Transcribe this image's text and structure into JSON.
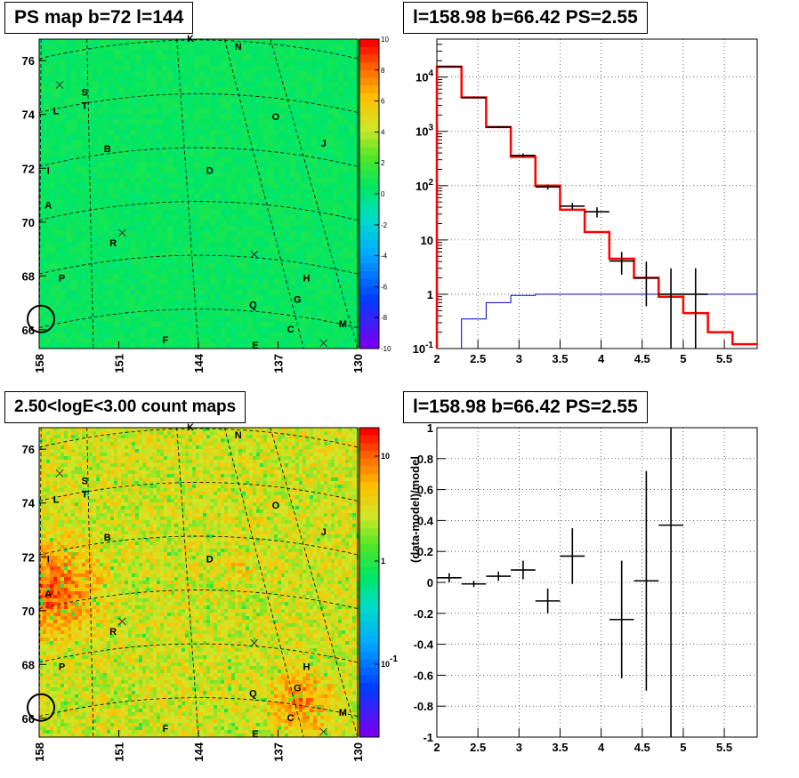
{
  "panels": {
    "top_left_title": "PS map b=72 l=144",
    "top_right_title": "l=158.98 b=66.42 PS=2.55",
    "bottom_left_title": "2.50<logE<3.00 count maps",
    "bottom_right_title": "l=158.98 b=66.42 PS=2.55"
  },
  "colors": {
    "histogram_model": "#ff0000",
    "baseline_line": "#0000cc",
    "data_points": "#000000",
    "map_background_top": "#22dd55",
    "map_background_bottom": "#e7d65a"
  },
  "chart_data": [
    {
      "type": "heatmap",
      "title": "PS map b=72 l=144",
      "xlabel": "",
      "ylabel": "",
      "x_ticks": [
        "158",
        "151",
        "144",
        "137",
        "130"
      ],
      "y_ticks": [
        "66",
        "68",
        "70",
        "72",
        "74",
        "76"
      ],
      "colorbar": {
        "ticks": [
          "10",
          "8",
          "6",
          "4",
          "2",
          "0",
          "-2",
          "-4",
          "-6",
          "-8",
          "-10"
        ],
        "range": [
          -10,
          10
        ]
      },
      "source_labels": [
        {
          "label": "K",
          "l": 144.7,
          "b": 76.7
        },
        {
          "label": "N",
          "l": 140.5,
          "b": 76.4
        },
        {
          "label": "S",
          "l": 154.0,
          "b": 74.7
        },
        {
          "label": "T",
          "l": 154.0,
          "b": 74.2
        },
        {
          "label": "L",
          "l": 156.5,
          "b": 74.0
        },
        {
          "label": "O",
          "l": 137.2,
          "b": 73.8
        },
        {
          "label": "J",
          "l": 133.0,
          "b": 72.8
        },
        {
          "label": "B",
          "l": 152.0,
          "b": 72.6
        },
        {
          "label": "D",
          "l": 143.0,
          "b": 71.8
        },
        {
          "label": "I",
          "l": 157.2,
          "b": 71.8
        },
        {
          "label": "A",
          "l": 157.2,
          "b": 70.5
        },
        {
          "label": "R",
          "l": 151.5,
          "b": 69.1
        },
        {
          "label": "H",
          "l": 134.5,
          "b": 67.8
        },
        {
          "label": "P",
          "l": 156.0,
          "b": 67.8
        },
        {
          "label": "G",
          "l": 135.3,
          "b": 67.0
        },
        {
          "label": "Q",
          "l": 139.2,
          "b": 66.8
        },
        {
          "label": "C",
          "l": 135.9,
          "b": 65.9
        },
        {
          "label": "M",
          "l": 131.3,
          "b": 66.1
        },
        {
          "label": "F",
          "l": 146.9,
          "b": 65.5
        },
        {
          "label": "E",
          "l": 139.0,
          "b": 65.3
        }
      ],
      "crosses": [
        {
          "l": 156.2,
          "b": 75.1
        },
        {
          "l": 150.7,
          "b": 69.6
        },
        {
          "l": 139.1,
          "b": 68.8
        },
        {
          "l": 133.0,
          "b": 65.5
        }
      ],
      "circle": {
        "l": 158.0,
        "b": 66.4
      }
    },
    {
      "type": "line",
      "title": "l=158.98 b=66.42 PS=2.55",
      "xlabel": "",
      "ylabel": "",
      "x_ticks": [
        "2",
        "2.5",
        "3",
        "3.5",
        "4",
        "4.5",
        "5",
        "5.5"
      ],
      "y_ticks": [
        "10^-1",
        "1",
        "10",
        "10^2",
        "10^3",
        "10^4"
      ],
      "xlim": [
        2,
        5.9
      ],
      "ylim": [
        0.1,
        50000
      ],
      "log_y": true,
      "grid": true,
      "series": [
        {
          "style": "step",
          "edges": [
            2.0,
            2.3,
            2.6,
            2.9,
            3.2,
            3.5,
            3.8,
            4.1,
            4.4,
            4.7,
            5.0,
            5.3,
            5.6,
            5.9
          ],
          "values": [
            15500,
            4200,
            1200,
            340,
            100,
            36,
            14,
            4.5,
            2.0,
            0.9,
            0.45,
            0.2,
            0.12
          ]
        },
        {
          "style": "step",
          "edges": [
            2.3,
            2.6,
            2.9,
            3.2,
            5.9
          ],
          "values": [
            0.35,
            0.7,
            0.95,
            1.0
          ]
        },
        {
          "style": "errorbar",
          "x": [
            2.15,
            2.45,
            2.75,
            3.05,
            3.35,
            3.65,
            3.95,
            4.25,
            4.55,
            4.85,
            5.15
          ],
          "y": [
            15500,
            4200,
            1200,
            360,
            95,
            42,
            33,
            4.1,
            2.0,
            1.0,
            1.0
          ],
          "xerr": 0.15,
          "y_low": [
            15000,
            4000,
            1150,
            330,
            85,
            36,
            26,
            2.3,
            0.6,
            0.1,
            0.1
          ],
          "y_high": [
            16000,
            4400,
            1250,
            390,
            105,
            48,
            40,
            6.0,
            4.0,
            3.0,
            3.0
          ]
        }
      ]
    },
    {
      "type": "heatmap",
      "title": "2.50<logE<3.00 count maps",
      "xlabel": "",
      "ylabel": "",
      "x_ticks": [
        "158",
        "151",
        "144",
        "137",
        "130"
      ],
      "y_ticks": [
        "66",
        "68",
        "70",
        "72",
        "74",
        "76"
      ],
      "colorbar": {
        "ticks": [
          "10",
          "1",
          "10^-1"
        ],
        "log_scale": true
      },
      "source_labels": "same as top-left map"
    },
    {
      "type": "scatter",
      "title": "l=158.98 b=66.42 PS=2.55",
      "xlabel": "",
      "ylabel": "(data-model)/model",
      "x_ticks": [
        "2",
        "2.5",
        "3",
        "3.5",
        "4",
        "4.5",
        "5",
        "5.5"
      ],
      "y_ticks": [
        "-1",
        "-0.8",
        "-0.6",
        "-0.4",
        "-0.2",
        "0",
        "0.2",
        "0.4",
        "0.6",
        "0.8",
        "1"
      ],
      "xlim": [
        2,
        5.9
      ],
      "ylim": [
        -1,
        1
      ],
      "grid": true,
      "x": [
        2.15,
        2.45,
        2.75,
        3.05,
        3.35,
        3.65,
        4.25,
        4.55,
        4.85
      ],
      "y": [
        0.03,
        -0.01,
        0.04,
        0.08,
        -0.12,
        0.17,
        -0.24,
        0.01,
        0.37
      ],
      "xerr": 0.15,
      "yerr": [
        0.03,
        0.02,
        0.03,
        0.06,
        0.08,
        0.18,
        0.38,
        0.71,
        1.4
      ]
    }
  ]
}
